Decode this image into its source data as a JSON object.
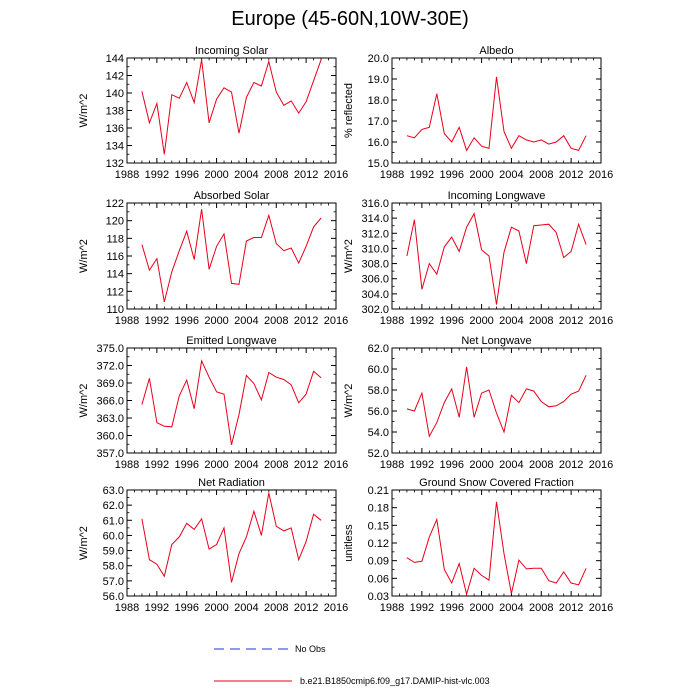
{
  "figure": {
    "title": "Europe (45-60N,10W-30E)"
  },
  "legend": {
    "entries": [
      {
        "label": "No Obs",
        "color": "#2b2bd6",
        "style": "dashed"
      },
      {
        "label": "b.e21.B1850cmip6.f09_g17.DAMIP-hist-vlc.003",
        "color": "#e8001c",
        "style": "solid"
      }
    ]
  },
  "colors": {
    "series": "#e8001c",
    "axis": "#000000"
  },
  "chart_data": [
    {
      "type": "line",
      "title": "Incoming Solar",
      "ylabel": "W/m^2",
      "xlim": [
        1988,
        2016
      ],
      "ylim": [
        132,
        144
      ],
      "xticks": [
        1988,
        1992,
        1996,
        2000,
        2004,
        2008,
        2012,
        2016
      ],
      "yticks": [
        "132",
        "134",
        "136",
        "138",
        "140",
        "142",
        "144"
      ],
      "x": [
        1990,
        1991,
        1992,
        1993,
        1994,
        1995,
        1996,
        1997,
        1998,
        1999,
        2000,
        2001,
        2002,
        2003,
        2004,
        2005,
        2006,
        2007,
        2008,
        2009,
        2010,
        2011,
        2012,
        2013,
        2014
      ],
      "values": [
        140.2,
        136.6,
        138.8,
        133.0,
        139.8,
        139.4,
        141.2,
        138.9,
        143.8,
        136.6,
        139.3,
        140.6,
        140.1,
        135.4,
        139.5,
        141.2,
        140.8,
        143.6,
        140.1,
        138.6,
        139.1,
        137.7,
        139.0,
        141.4,
        143.8
      ]
    },
    {
      "type": "line",
      "title": "Albedo",
      "ylabel": "% reflected",
      "xlim": [
        1988,
        2016
      ],
      "ylim": [
        15.0,
        20.0
      ],
      "xticks": [
        1988,
        1992,
        1996,
        2000,
        2004,
        2008,
        2012,
        2016
      ],
      "yticks": [
        "15.0",
        "16.0",
        "17.0",
        "18.0",
        "19.0",
        "20.0"
      ],
      "x": [
        1990,
        1991,
        1992,
        1993,
        1994,
        1995,
        1996,
        1997,
        1998,
        1999,
        2000,
        2001,
        2002,
        2003,
        2004,
        2005,
        2006,
        2007,
        2008,
        2009,
        2010,
        2011,
        2012,
        2013,
        2014
      ],
      "values": [
        16.3,
        16.2,
        16.6,
        16.7,
        18.3,
        16.4,
        16.0,
        16.7,
        15.6,
        16.2,
        15.8,
        15.7,
        19.1,
        16.5,
        15.7,
        16.3,
        16.1,
        16.0,
        16.1,
        15.9,
        16.0,
        16.3,
        15.7,
        15.6,
        16.3
      ]
    },
    {
      "type": "line",
      "title": "Absorbed Solar",
      "ylabel": "W/m^2",
      "xlim": [
        1988,
        2016
      ],
      "ylim": [
        110,
        122
      ],
      "xticks": [
        1988,
        1992,
        1996,
        2000,
        2004,
        2008,
        2012,
        2016
      ],
      "yticks": [
        "110",
        "112",
        "114",
        "116",
        "118",
        "120",
        "122"
      ],
      "x": [
        1990,
        1991,
        1992,
        1993,
        1994,
        1995,
        1996,
        1997,
        1998,
        1999,
        2000,
        2001,
        2002,
        2003,
        2004,
        2005,
        2006,
        2007,
        2008,
        2009,
        2010,
        2011,
        2012,
        2013,
        2014
      ],
      "values": [
        117.3,
        114.4,
        115.7,
        110.8,
        114.2,
        116.6,
        118.8,
        115.6,
        121.3,
        114.5,
        117.1,
        118.5,
        112.9,
        112.8,
        117.7,
        118.1,
        118.1,
        120.6,
        117.4,
        116.6,
        116.9,
        115.2,
        117.1,
        119.3,
        120.3
      ]
    },
    {
      "type": "line",
      "title": "Incoming Longwave",
      "ylabel": "W/m^2",
      "xlim": [
        1988,
        2016
      ],
      "ylim": [
        302.0,
        316.0
      ],
      "xticks": [
        1988,
        1992,
        1996,
        2000,
        2004,
        2008,
        2012,
        2016
      ],
      "yticks": [
        "302.0",
        "304.0",
        "306.0",
        "308.0",
        "310.0",
        "312.0",
        "314.0",
        "316.0"
      ],
      "x": [
        1990,
        1991,
        1992,
        1993,
        1994,
        1995,
        1996,
        1997,
        1998,
        1999,
        2000,
        2001,
        2002,
        2003,
        2004,
        2005,
        2006,
        2007,
        2008,
        2009,
        2010,
        2011,
        2012,
        2013,
        2014
      ],
      "values": [
        309.0,
        313.8,
        304.6,
        308.0,
        306.6,
        310.2,
        311.5,
        309.6,
        312.8,
        314.6,
        309.8,
        309.0,
        302.6,
        309.5,
        312.8,
        312.3,
        308.0,
        313.0,
        313.1,
        313.2,
        312.1,
        308.8,
        309.6,
        313.2,
        310.5
      ]
    },
    {
      "type": "line",
      "title": "Emitted Longwave",
      "ylabel": "W/m^2",
      "xlim": [
        1988,
        2016
      ],
      "ylim": [
        357.0,
        375.0
      ],
      "xticks": [
        1988,
        1992,
        1996,
        2000,
        2004,
        2008,
        2012,
        2016
      ],
      "yticks": [
        "357.0",
        "360.0",
        "363.0",
        "366.0",
        "369.0",
        "372.0",
        "375.0"
      ],
      "x": [
        1990,
        1991,
        1992,
        1993,
        1994,
        1995,
        1996,
        1997,
        1998,
        1999,
        2000,
        2001,
        2002,
        2003,
        2004,
        2005,
        2006,
        2007,
        2008,
        2009,
        2010,
        2011,
        2012,
        2013,
        2014
      ],
      "values": [
        365.3,
        369.8,
        362.2,
        361.6,
        361.5,
        366.8,
        369.5,
        364.6,
        372.8,
        370.0,
        367.5,
        367.1,
        358.4,
        363.6,
        370.3,
        368.9,
        366.1,
        370.8,
        370.0,
        369.6,
        368.7,
        365.6,
        367.1,
        371.0,
        369.9
      ]
    },
    {
      "type": "line",
      "title": "Net Longwave",
      "ylabel": "W/m^2",
      "xlim": [
        1988,
        2016
      ],
      "ylim": [
        52.0,
        62.0
      ],
      "xticks": [
        1988,
        1992,
        1996,
        2000,
        2004,
        2008,
        2012,
        2016
      ],
      "yticks": [
        "52.0",
        "54.0",
        "56.0",
        "58.0",
        "60.0",
        "62.0"
      ],
      "x": [
        1990,
        1991,
        1992,
        1993,
        1994,
        1995,
        1996,
        1997,
        1998,
        1999,
        2000,
        2001,
        2002,
        2003,
        2004,
        2005,
        2006,
        2007,
        2008,
        2009,
        2010,
        2011,
        2012,
        2013,
        2014
      ],
      "values": [
        56.2,
        56.0,
        57.7,
        53.6,
        54.9,
        56.8,
        58.1,
        55.4,
        60.2,
        55.4,
        57.7,
        58.0,
        55.8,
        54.0,
        57.5,
        56.8,
        58.1,
        57.9,
        56.9,
        56.4,
        56.5,
        56.9,
        57.6,
        57.9,
        59.4
      ]
    },
    {
      "type": "line",
      "title": "Net Radiation",
      "ylabel": "W/m^2",
      "xlim": [
        1988,
        2016
      ],
      "ylim": [
        56.0,
        63.0
      ],
      "xticks": [
        1988,
        1992,
        1996,
        2000,
        2004,
        2008,
        2012,
        2016
      ],
      "yticks": [
        "56.0",
        "57.0",
        "58.0",
        "59.0",
        "60.0",
        "61.0",
        "62.0",
        "63.0"
      ],
      "x": [
        1990,
        1991,
        1992,
        1993,
        1994,
        1995,
        1996,
        1997,
        1998,
        1999,
        2000,
        2001,
        2002,
        2003,
        2004,
        2005,
        2006,
        2007,
        2008,
        2009,
        2010,
        2011,
        2012,
        2013,
        2014
      ],
      "values": [
        61.1,
        58.4,
        58.1,
        57.3,
        59.4,
        59.9,
        60.8,
        60.4,
        61.1,
        59.1,
        59.4,
        60.5,
        56.9,
        58.8,
        59.9,
        61.6,
        60.0,
        62.8,
        60.6,
        60.3,
        60.5,
        58.4,
        59.6,
        61.4,
        61.0
      ]
    },
    {
      "type": "line",
      "title": "Ground Snow Covered Fraction",
      "ylabel": "unitless",
      "xlim": [
        1988,
        2016
      ],
      "ylim": [
        0.03,
        0.21
      ],
      "xticks": [
        1988,
        1992,
        1996,
        2000,
        2004,
        2008,
        2012,
        2016
      ],
      "yticks": [
        "0.03",
        "0.06",
        "0.09",
        "0.12",
        "0.15",
        "0.18",
        "0.21"
      ],
      "x": [
        1990,
        1991,
        1992,
        1993,
        1994,
        1995,
        1996,
        1997,
        1998,
        1999,
        2000,
        2001,
        2002,
        2003,
        2004,
        2005,
        2006,
        2007,
        2008,
        2009,
        2010,
        2011,
        2012,
        2013,
        2014
      ],
      "values": [
        0.095,
        0.087,
        0.089,
        0.13,
        0.16,
        0.075,
        0.052,
        0.085,
        0.033,
        0.077,
        0.065,
        0.057,
        0.19,
        0.102,
        0.034,
        0.091,
        0.076,
        0.077,
        0.077,
        0.056,
        0.052,
        0.071,
        0.052,
        0.049,
        0.077
      ]
    }
  ]
}
